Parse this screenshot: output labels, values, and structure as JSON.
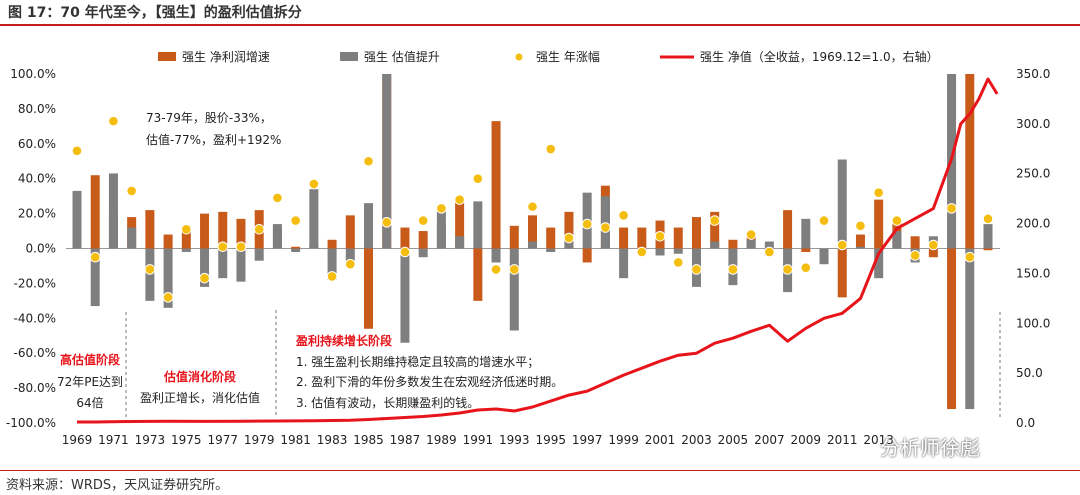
{
  "figure_title": "图 17：70 年代至今，【强生】的盈利估值拆分",
  "source": "资料来源：WRDS，天风证券研究所。",
  "watermark": "分析师徐彪",
  "colors": {
    "earnings": "#c85a1a",
    "valuation": "#7f7f7f",
    "price": "#f5bd0f",
    "nav": "#e8141b",
    "rule": "#c41e1e"
  },
  "annotations": {
    "a1": "73-79年，股价-33%，",
    "a2": "估值-77%，盈利+192%",
    "phase1_title": "高估值阶段",
    "phase1_l1": "72年PE达到",
    "phase1_l2": "64倍",
    "phase2_title": "估值消化阶段",
    "phase2_l1": "盈利正增长，消化估值",
    "phase3_title": "盈利持续增长阶段",
    "phase3_l1": "1.  强生盈利长期维持稳定且较高的增速水平；",
    "phase3_l2": "2.  盈利下滑的年份多数发生在宏观经济低迷时期。",
    "phase3_l3": "3.  估值有波动，长期赚盈利的钱。"
  },
  "chart_data": {
    "type": "bar",
    "title": "",
    "legend_position": "top",
    "x": [
      1969,
      1970,
      1971,
      1972,
      1973,
      1974,
      1975,
      1976,
      1977,
      1978,
      1979,
      1980,
      1981,
      1982,
      1983,
      1984,
      1985,
      1986,
      1987,
      1988,
      1989,
      1990,
      1991,
      1992,
      1993,
      1994,
      1995,
      1996,
      1997,
      1998,
      1999,
      2000,
      2001,
      2002,
      2003,
      2004,
      2005,
      2006,
      2007,
      2008,
      2009,
      2010,
      2011,
      2012,
      2013,
      2014,
      2015,
      2016,
      2017,
      2018,
      2019
    ],
    "x_tick_labels": [
      "1969",
      "1971",
      "1973",
      "1975",
      "1977",
      "1979",
      "1981",
      "1983",
      "1985",
      "1987",
      "1989",
      "1991",
      "1993",
      "1995",
      "1997",
      "1999",
      "2001",
      "2003",
      "2005",
      "2007",
      "2009",
      "2011",
      "2013"
    ],
    "y_left": {
      "min": -100,
      "max": 100,
      "ticks": [
        "-100.0%",
        "-80.0%",
        "-60.0%",
        "-40.0%",
        "-20.0%",
        "0.0%",
        "20.0%",
        "40.0%",
        "60.0%",
        "80.0%",
        "100.0%"
      ]
    },
    "y_right": {
      "min": 0,
      "max": 350,
      "ticks": [
        "0.0",
        "50.0",
        "100.0",
        "150.0",
        "200.0",
        "250.0",
        "300.0",
        "350.0"
      ]
    },
    "series": [
      {
        "name": "强生 净利润增速",
        "kind": "bar",
        "axis": "left",
        "values": [
          18,
          42,
          21,
          18,
          22,
          8,
          11,
          20,
          21,
          17,
          22,
          12,
          1,
          3,
          5,
          19,
          -46,
          100,
          12,
          10,
          15,
          27,
          -30,
          73,
          13,
          19,
          12,
          21,
          -8,
          36,
          12,
          12,
          16,
          12,
          18,
          21,
          5,
          8,
          -4,
          22,
          -2,
          -5,
          -28,
          8,
          28,
          17,
          7,
          -5,
          -92,
          100,
          -1
        ]
      },
      {
        "name": "强生 估值提升",
        "kind": "bar",
        "axis": "left",
        "values": [
          33,
          -33,
          43,
          12,
          -30,
          -34,
          -2,
          -22,
          -17,
          -19,
          -7,
          14,
          -2,
          34,
          -18,
          -7,
          26,
          100,
          -54,
          -5,
          24,
          7,
          27,
          -8,
          -47,
          4,
          -2,
          8,
          32,
          30,
          -17,
          -1,
          -4,
          -3,
          -22,
          4,
          -21,
          5,
          4,
          -25,
          17,
          -9,
          51,
          1,
          -17,
          10,
          -8,
          7,
          100,
          -92,
          14
        ]
      },
      {
        "name": "强生 年涨幅",
        "kind": "scatter",
        "axis": "left",
        "values": [
          56,
          -5,
          73,
          33,
          -12,
          -28,
          11,
          -17,
          1,
          1,
          11,
          29,
          16,
          37,
          -16,
          -9,
          50,
          15,
          -2,
          16,
          23,
          28,
          40,
          -12,
          -12,
          24,
          57,
          6,
          14,
          12,
          19,
          -2,
          7,
          -8,
          -12,
          16,
          -12,
          8,
          -2,
          -12,
          -11,
          16,
          2,
          13,
          32,
          16,
          -4,
          2,
          23,
          -5,
          17
        ]
      },
      {
        "name": "强生 净值（全收益，1969.12=1.0，右轴）",
        "kind": "line",
        "axis": "right",
        "x": [
          1970,
          1972,
          1974,
          1976,
          1978,
          1980,
          1982,
          1984,
          1985,
          1986,
          1987,
          1988,
          1989,
          1990,
          1991,
          1992,
          1993,
          1994,
          1995,
          1996,
          1997,
          1998,
          1999,
          2000,
          2001,
          2002,
          2003,
          2004,
          2005,
          2006,
          2007,
          2008,
          2009,
          2010,
          2011,
          2012,
          2013,
          2014,
          2015,
          2016,
          2017,
          2017.5,
          2018,
          2018.5,
          2019,
          2019.5
        ],
        "values": [
          1,
          1.5,
          1.8,
          1.6,
          1.8,
          2,
          2.3,
          2.8,
          3.5,
          4.5,
          5.5,
          6.5,
          8,
          10,
          13,
          14,
          12,
          16,
          22,
          28,
          32,
          40,
          48,
          55,
          62,
          68,
          70,
          80,
          85,
          92,
          98,
          82,
          95,
          105,
          110,
          125,
          170,
          195,
          205,
          215,
          265,
          300,
          310,
          325,
          345,
          330
        ]
      }
    ]
  }
}
